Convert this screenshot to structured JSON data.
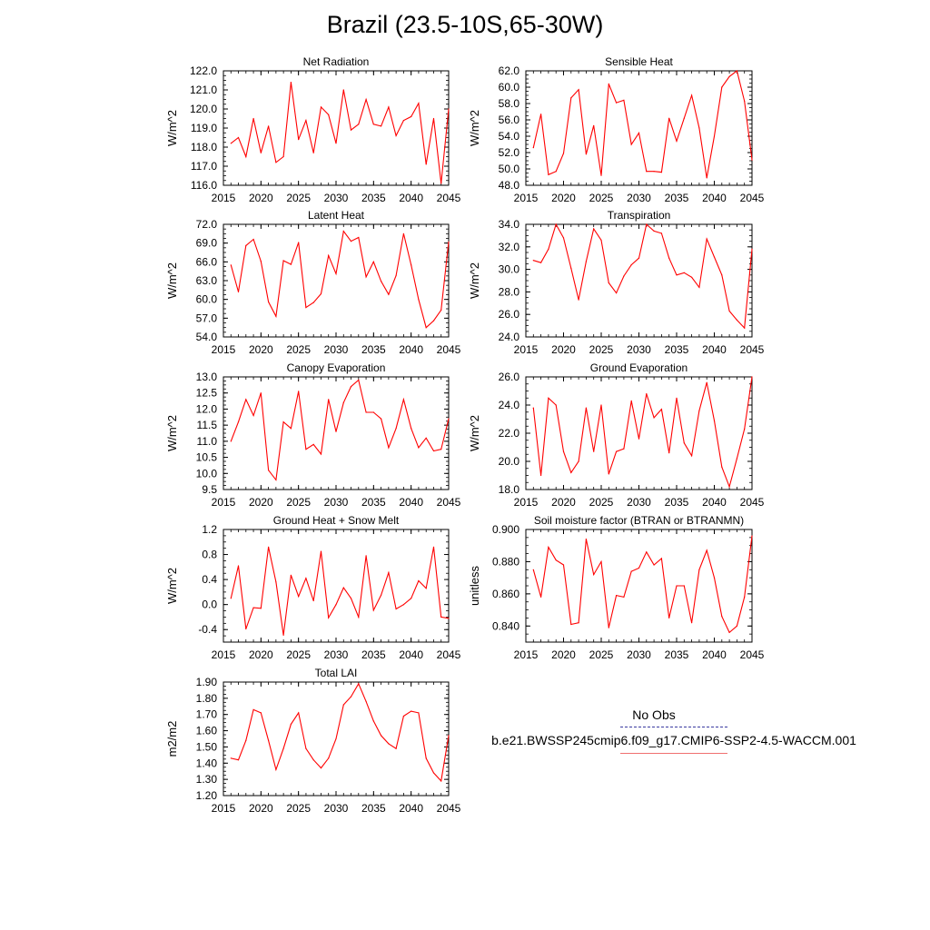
{
  "title": "Brazil (23.5-10S,65-30W)",
  "colors": {
    "model": "#ff0000",
    "obs": "#3a3aa0"
  },
  "legend": {
    "obs_label": "No Obs",
    "model_label": "b.e21.BWSSP245cmip6.f09_g17.CMIP6-SSP2-4.5-WACCM.001"
  },
  "chart_data": [
    {
      "type": "line",
      "title": "Net Radiation",
      "ylabel": "W/m^2",
      "xlim": [
        2015,
        2045
      ],
      "ylim": [
        116.0,
        122.0
      ],
      "xticks": [
        "2015",
        "2020",
        "2025",
        "2030",
        "2035",
        "2040",
        "2045"
      ],
      "yticks": [
        "116.0",
        "117.0",
        "118.0",
        "119.0",
        "120.0",
        "121.0",
        "122.0"
      ],
      "x": [
        2016,
        2017,
        2018,
        2019,
        2020,
        2021,
        2022,
        2023,
        2024,
        2025,
        2026,
        2027,
        2028,
        2029,
        2030,
        2031,
        2032,
        2033,
        2034,
        2035,
        2036,
        2037,
        2038,
        2039,
        2040,
        2041,
        2042,
        2043,
        2044,
        2045
      ],
      "values": [
        118.2,
        118.5,
        117.5,
        119.5,
        117.7,
        119.1,
        117.2,
        117.5,
        121.4,
        118.4,
        119.4,
        117.7,
        120.1,
        119.7,
        118.2,
        121.0,
        118.9,
        119.2,
        120.5,
        119.2,
        119.1,
        120.1,
        118.6,
        119.4,
        119.6,
        120.3,
        117.1,
        119.5,
        116.1,
        120.0
      ]
    },
    {
      "type": "line",
      "title": "Sensible Heat",
      "ylabel": "W/m^2",
      "xlim": [
        2015,
        2045
      ],
      "ylim": [
        48.0,
        62.0
      ],
      "xticks": [
        "2015",
        "2020",
        "2025",
        "2030",
        "2035",
        "2040",
        "2045"
      ],
      "yticks": [
        "48.0",
        "50.0",
        "52.0",
        "54.0",
        "56.0",
        "58.0",
        "60.0",
        "62.0"
      ],
      "x": [
        2016,
        2017,
        2018,
        2019,
        2020,
        2021,
        2022,
        2023,
        2024,
        2025,
        2026,
        2027,
        2028,
        2029,
        2030,
        2031,
        2032,
        2033,
        2034,
        2035,
        2036,
        2037,
        2038,
        2039,
        2040,
        2041,
        2042,
        2043,
        2044,
        2045
      ],
      "values": [
        52.6,
        56.7,
        49.3,
        49.7,
        51.9,
        58.7,
        59.7,
        51.8,
        55.3,
        49.2,
        60.4,
        58.1,
        58.4,
        53.0,
        54.4,
        49.7,
        49.7,
        49.6,
        56.2,
        53.4,
        56.2,
        59.0,
        55.0,
        48.9,
        54.0,
        60.0,
        61.3,
        62.0,
        58.3,
        51.1
      ]
    },
    {
      "type": "line",
      "title": "Latent Heat",
      "ylabel": "W/m^2",
      "xlim": [
        2015,
        2045
      ],
      "ylim": [
        54.0,
        72.0
      ],
      "xticks": [
        "2015",
        "2020",
        "2025",
        "2030",
        "2035",
        "2040",
        "2045"
      ],
      "yticks": [
        "54.0",
        "57.0",
        "60.0",
        "63.0",
        "66.0",
        "69.0",
        "72.0"
      ],
      "x": [
        2016,
        2017,
        2018,
        2019,
        2020,
        2021,
        2022,
        2023,
        2024,
        2025,
        2026,
        2027,
        2028,
        2029,
        2030,
        2031,
        2032,
        2033,
        2034,
        2035,
        2036,
        2037,
        2038,
        2039,
        2040,
        2041,
        2042,
        2043,
        2044,
        2045
      ],
      "values": [
        65.5,
        61.2,
        68.6,
        69.6,
        66.1,
        59.6,
        57.3,
        66.2,
        65.6,
        69.1,
        58.7,
        59.5,
        60.9,
        67.0,
        64.1,
        70.9,
        69.3,
        69.9,
        63.6,
        66.0,
        62.9,
        60.8,
        63.8,
        70.5,
        65.5,
        60.0,
        55.5,
        56.6,
        58.3,
        69.2
      ]
    },
    {
      "type": "line",
      "title": "Transpiration",
      "ylabel": "W/m^2",
      "xlim": [
        2015,
        2045
      ],
      "ylim": [
        24.0,
        34.0
      ],
      "xticks": [
        "2015",
        "2020",
        "2025",
        "2030",
        "2035",
        "2040",
        "2045"
      ],
      "yticks": [
        "24.0",
        "26.0",
        "28.0",
        "30.0",
        "32.0",
        "34.0"
      ],
      "x": [
        2016,
        2017,
        2018,
        2019,
        2020,
        2021,
        2022,
        2023,
        2024,
        2025,
        2026,
        2027,
        2028,
        2029,
        2030,
        2031,
        2032,
        2033,
        2034,
        2035,
        2036,
        2037,
        2038,
        2039,
        2040,
        2041,
        2042,
        2043,
        2044,
        2045
      ],
      "values": [
        30.8,
        30.6,
        31.8,
        34.0,
        32.8,
        30.1,
        27.3,
        30.7,
        33.6,
        32.6,
        28.8,
        27.9,
        29.4,
        30.4,
        31.0,
        34.0,
        33.4,
        33.2,
        31.0,
        29.5,
        29.7,
        29.3,
        28.4,
        32.7,
        31.1,
        29.5,
        26.3,
        25.5,
        24.8,
        31.8
      ]
    },
    {
      "type": "line",
      "title": "Canopy Evaporation",
      "ylabel": "W/m^2",
      "xlim": [
        2015,
        2045
      ],
      "ylim": [
        9.5,
        13.0
      ],
      "xticks": [
        "2015",
        "2020",
        "2025",
        "2030",
        "2035",
        "2040",
        "2045"
      ],
      "yticks": [
        "9.5",
        "10.0",
        "10.5",
        "11.0",
        "11.5",
        "12.0",
        "12.5",
        "13.0"
      ],
      "x": [
        2016,
        2017,
        2018,
        2019,
        2020,
        2021,
        2022,
        2023,
        2024,
        2025,
        2026,
        2027,
        2028,
        2029,
        2030,
        2031,
        2032,
        2033,
        2034,
        2035,
        2036,
        2037,
        2038,
        2039,
        2040,
        2041,
        2042,
        2043,
        2044,
        2045
      ],
      "values": [
        11.0,
        11.6,
        12.3,
        11.8,
        12.5,
        10.1,
        9.8,
        11.6,
        11.4,
        12.55,
        10.75,
        10.9,
        10.6,
        12.3,
        11.3,
        12.2,
        12.7,
        12.9,
        11.9,
        11.9,
        11.7,
        10.8,
        11.4,
        12.3,
        11.4,
        10.8,
        11.1,
        10.7,
        10.75,
        11.7
      ]
    },
    {
      "type": "line",
      "title": "Ground Evaporation",
      "ylabel": "W/m^2",
      "xlim": [
        2015,
        2045
      ],
      "ylim": [
        18.0,
        26.0
      ],
      "xticks": [
        "2015",
        "2020",
        "2025",
        "2030",
        "2035",
        "2040",
        "2045"
      ],
      "yticks": [
        "18.0",
        "20.0",
        "22.0",
        "24.0",
        "26.0"
      ],
      "x": [
        2016,
        2017,
        2018,
        2019,
        2020,
        2021,
        2022,
        2023,
        2024,
        2025,
        2026,
        2027,
        2028,
        2029,
        2030,
        2031,
        2032,
        2033,
        2034,
        2035,
        2036,
        2037,
        2038,
        2039,
        2040,
        2041,
        2042,
        2043,
        2044,
        2045
      ],
      "values": [
        23.8,
        19.0,
        24.5,
        24.0,
        20.7,
        19.2,
        20.0,
        23.8,
        20.7,
        24.0,
        19.1,
        20.7,
        20.9,
        24.3,
        21.6,
        24.8,
        23.1,
        23.7,
        20.6,
        24.5,
        21.3,
        20.4,
        23.6,
        25.6,
        22.9,
        19.6,
        18.2,
        20.2,
        22.3,
        26.0
      ]
    },
    {
      "type": "line",
      "title": "Ground Heat + Snow Melt",
      "ylabel": "W/m^2",
      "xlim": [
        2015,
        2045
      ],
      "ylim": [
        -0.6,
        1.2
      ],
      "xticks": [
        "2015",
        "2020",
        "2025",
        "2030",
        "2035",
        "2040",
        "2045"
      ],
      "yticks": [
        "-0.4",
        "0.0",
        "0.4",
        "0.8",
        "1.2"
      ],
      "x": [
        2016,
        2017,
        2018,
        2019,
        2020,
        2021,
        2022,
        2023,
        2024,
        2025,
        2026,
        2027,
        2028,
        2029,
        2030,
        2031,
        2032,
        2033,
        2034,
        2035,
        2036,
        2037,
        2038,
        2039,
        2040,
        2041,
        2042,
        2043,
        2044,
        2045
      ],
      "values": [
        0.1,
        0.62,
        -0.39,
        -0.05,
        -0.06,
        0.92,
        0.36,
        -0.49,
        0.47,
        0.13,
        0.42,
        0.06,
        0.85,
        -0.21,
        0.0,
        0.27,
        0.1,
        -0.2,
        0.78,
        -0.09,
        0.15,
        0.51,
        -0.07,
        0.0,
        0.1,
        0.38,
        0.26,
        0.92,
        -0.2,
        -0.22
      ]
    },
    {
      "type": "line",
      "title": "Soil moisture factor (BTRAN or BTRANMN)",
      "ylabel": "unitless",
      "xlim": [
        2015,
        2045
      ],
      "ylim": [
        0.83,
        0.9
      ],
      "xticks": [
        "2015",
        "2020",
        "2025",
        "2030",
        "2035",
        "2040",
        "2045"
      ],
      "yticks": [
        "0.840",
        "0.860",
        "0.880",
        "0.900"
      ],
      "x": [
        2016,
        2017,
        2018,
        2019,
        2020,
        2021,
        2022,
        2023,
        2024,
        2025,
        2026,
        2027,
        2028,
        2029,
        2030,
        2031,
        2032,
        2033,
        2034,
        2035,
        2036,
        2037,
        2038,
        2039,
        2040,
        2041,
        2042,
        2043,
        2044,
        2045
      ],
      "values": [
        0.875,
        0.858,
        0.889,
        0.881,
        0.878,
        0.841,
        0.842,
        0.894,
        0.872,
        0.88,
        0.839,
        0.859,
        0.858,
        0.874,
        0.876,
        0.886,
        0.878,
        0.882,
        0.845,
        0.865,
        0.865,
        0.842,
        0.875,
        0.887,
        0.87,
        0.846,
        0.836,
        0.84,
        0.858,
        0.896
      ]
    },
    {
      "type": "line",
      "title": "Total LAI",
      "ylabel": "m2/m2",
      "xlim": [
        2015,
        2045
      ],
      "ylim": [
        1.2,
        1.9
      ],
      "xticks": [
        "2015",
        "2020",
        "2025",
        "2030",
        "2035",
        "2040",
        "2045"
      ],
      "yticks": [
        "1.20",
        "1.30",
        "1.40",
        "1.50",
        "1.60",
        "1.70",
        "1.80",
        "1.90"
      ],
      "x": [
        2016,
        2017,
        2018,
        2019,
        2020,
        2021,
        2022,
        2023,
        2024,
        2025,
        2026,
        2027,
        2028,
        2029,
        2030,
        2031,
        2032,
        2033,
        2034,
        2035,
        2036,
        2037,
        2038,
        2039,
        2040,
        2041,
        2042,
        2043,
        2044,
        2045
      ],
      "values": [
        1.43,
        1.42,
        1.54,
        1.73,
        1.71,
        1.54,
        1.36,
        1.49,
        1.64,
        1.71,
        1.49,
        1.42,
        1.37,
        1.43,
        1.55,
        1.76,
        1.81,
        1.89,
        1.78,
        1.66,
        1.57,
        1.52,
        1.49,
        1.69,
        1.72,
        1.71,
        1.43,
        1.34,
        1.29,
        1.57
      ]
    }
  ]
}
